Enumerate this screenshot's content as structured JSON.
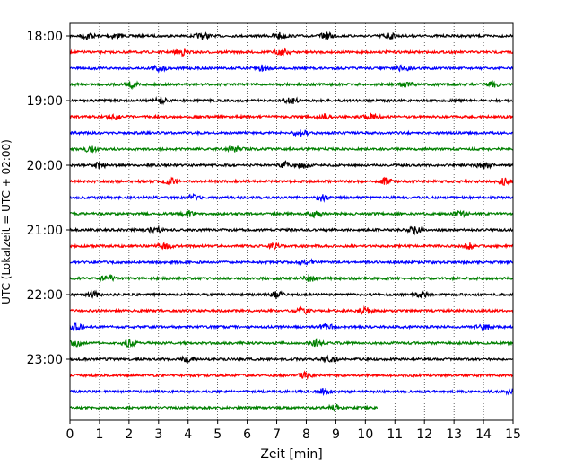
{
  "chart_data": {
    "type": "line",
    "title": "",
    "xlabel": "Zeit  [min]",
    "ylabel": "UTC (Lokalzeit = UTC + 02:00)",
    "xlim": [
      0,
      15
    ],
    "x_ticks": [
      "0",
      "1",
      "2",
      "3",
      "4",
      "5",
      "6",
      "7",
      "8",
      "9",
      "10",
      "11",
      "12",
      "13",
      "14",
      "15"
    ],
    "y_tick_labels": [
      "18:00",
      "19:00",
      "20:00",
      "21:00",
      "22:00",
      "23:00"
    ],
    "grid": "vertical dotted lines at each minute",
    "traces": [
      {
        "start": "18:00",
        "color": "#000000",
        "end_min": 15,
        "bursts": [
          0.6,
          1.5,
          4.5,
          7.1,
          8.7,
          10.8
        ]
      },
      {
        "start": "18:15",
        "color": "#ff0000",
        "end_min": 15,
        "bursts": [
          3.8,
          7.2
        ]
      },
      {
        "start": "18:30",
        "color": "#0000ff",
        "end_min": 15,
        "bursts": [
          3.0,
          6.5,
          11.3
        ]
      },
      {
        "start": "18:45",
        "color": "#008000",
        "end_min": 15,
        "bursts": [
          2.1,
          11.4,
          14.3
        ]
      },
      {
        "start": "19:00",
        "color": "#000000",
        "end_min": 15,
        "bursts": [
          3.1,
          7.5
        ]
      },
      {
        "start": "19:15",
        "color": "#ff0000",
        "end_min": 15,
        "bursts": [
          1.5,
          8.6,
          10.2
        ]
      },
      {
        "start": "19:30",
        "color": "#0000ff",
        "end_min": 15,
        "bursts": [
          7.8
        ]
      },
      {
        "start": "19:45",
        "color": "#008000",
        "end_min": 15,
        "bursts": [
          0.7,
          5.6
        ]
      },
      {
        "start": "20:00",
        "color": "#000000",
        "end_min": 15,
        "bursts": [
          1.0,
          7.3,
          7.9,
          14.0
        ]
      },
      {
        "start": "20:15",
        "color": "#ff0000",
        "end_min": 15,
        "bursts": [
          3.4,
          10.7,
          14.7
        ]
      },
      {
        "start": "20:30",
        "color": "#0000ff",
        "end_min": 15,
        "bursts": [
          4.2,
          8.5
        ]
      },
      {
        "start": "20:45",
        "color": "#008000",
        "end_min": 15,
        "bursts": [
          4.0,
          8.3,
          13.2
        ]
      },
      {
        "start": "21:00",
        "color": "#000000",
        "end_min": 15,
        "bursts": [
          2.9,
          11.7
        ]
      },
      {
        "start": "21:15",
        "color": "#ff0000",
        "end_min": 15,
        "bursts": [
          3.2,
          6.9,
          13.5
        ]
      },
      {
        "start": "21:30",
        "color": "#0000ff",
        "end_min": 15,
        "bursts": [
          8.0
        ]
      },
      {
        "start": "21:45",
        "color": "#008000",
        "end_min": 15,
        "bursts": [
          1.3,
          8.1
        ]
      },
      {
        "start": "22:00",
        "color": "#000000",
        "end_min": 15,
        "bursts": [
          0.8,
          7.0,
          11.9
        ]
      },
      {
        "start": "22:15",
        "color": "#ff0000",
        "end_min": 15,
        "bursts": [
          7.9,
          10.0
        ]
      },
      {
        "start": "22:30",
        "color": "#0000ff",
        "end_min": 15,
        "bursts": [
          0.2,
          8.7,
          14.0
        ]
      },
      {
        "start": "22:45",
        "color": "#008000",
        "end_min": 15,
        "bursts": [
          0.2,
          2.0,
          8.3
        ]
      },
      {
        "start": "23:00",
        "color": "#000000",
        "end_min": 15,
        "bursts": [
          4.0,
          8.8
        ]
      },
      {
        "start": "23:15",
        "color": "#ff0000",
        "end_min": 15,
        "bursts": [
          8.0
        ]
      },
      {
        "start": "23:30",
        "color": "#0000ff",
        "end_min": 15,
        "bursts": [
          8.6,
          15.0
        ]
      },
      {
        "start": "23:45",
        "color": "#008000",
        "end_min": 10.4,
        "bursts": [
          9.0
        ]
      }
    ]
  }
}
